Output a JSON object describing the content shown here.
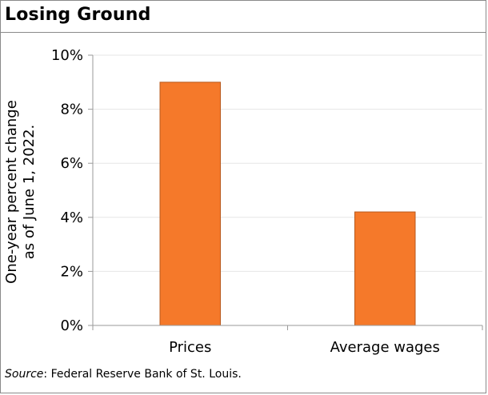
{
  "header": {
    "title": "Losing Ground"
  },
  "footer": {
    "source_label": "Source",
    "source_text": ": Federal Reserve Bank of St. Louis."
  },
  "chart_data": {
    "type": "bar",
    "title": "",
    "categories": [
      "Prices",
      "Average wages"
    ],
    "values": [
      9.0,
      4.2
    ],
    "ylabel_line1": "One-year percent change",
    "ylabel_line2": "as of June 1, 2022.",
    "xlabel": "",
    "ylim": [
      0,
      10
    ],
    "yticks": [
      {
        "value": 0,
        "label": "0%"
      },
      {
        "value": 2,
        "label": "2%"
      },
      {
        "value": 4,
        "label": "4%"
      },
      {
        "value": 6,
        "label": "6%"
      },
      {
        "value": 8,
        "label": "8%"
      },
      {
        "value": 10,
        "label": "10%"
      }
    ],
    "grid": true,
    "bar_color": "#F5792A",
    "bar_edge_color": "#B85A1E",
    "grid_color": "#E6E6E6",
    "axis_color": "#9A9A9A"
  }
}
